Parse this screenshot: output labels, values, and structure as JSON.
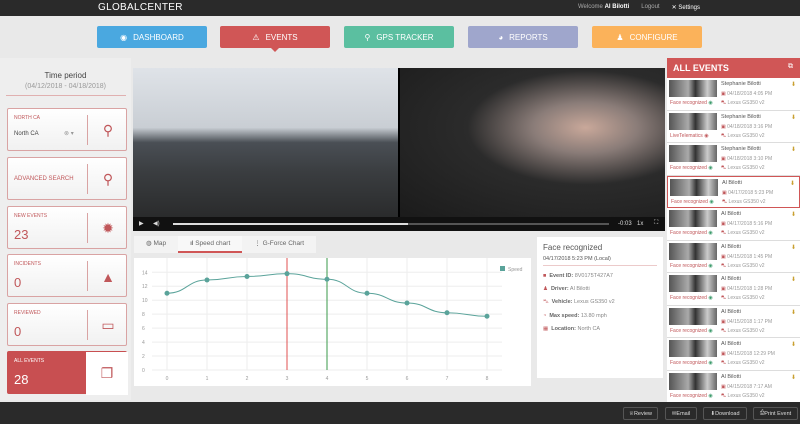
{
  "header": {
    "logo": "GLOBALCENTER",
    "welcome": "Welcome",
    "user": "Al Bilotti",
    "logout": "Logout",
    "settings": "Settings"
  },
  "nav": [
    {
      "label": "DASHBOARD",
      "color": "#4aa8e0",
      "icon": "dashboard-icon"
    },
    {
      "label": "EVENTS",
      "color": "#d05656",
      "icon": "warning-icon",
      "active": true
    },
    {
      "label": "GPS TRACKER",
      "color": "#5bbfa0",
      "icon": "map-pin-icon"
    },
    {
      "label": "REPORTS",
      "color": "#9fa6cc",
      "icon": "pie-chart-icon"
    },
    {
      "label": "CONFIGURE",
      "color": "#fbb25a",
      "icon": "user-icon"
    }
  ],
  "sidebar": {
    "time_period_label": "Time period",
    "time_period_range": "(04/12/2018 - 04/18/2018)",
    "region": {
      "label": "NORTH CA",
      "value": "North CA"
    },
    "advanced_search": "ADVANCED SEARCH",
    "new_events": {
      "label": "NEW EVENTS",
      "count": "23"
    },
    "incidents": {
      "label": "INCIDENTS",
      "count": "0"
    },
    "reviewed": {
      "label": "REVIEWED",
      "count": "0"
    },
    "all_events": {
      "label": "ALL EVENTS",
      "count": "28"
    }
  },
  "video": {
    "time_remaining": "-0:03",
    "speed": "1x",
    "progress": 0.54
  },
  "tabs": [
    "Map",
    "Speed chart",
    "G-Force Chart"
  ],
  "chart_data": {
    "type": "line",
    "categories": [
      "0",
      "1",
      "2",
      "3",
      "4",
      "5",
      "6",
      "7",
      "8"
    ],
    "series": [
      {
        "name": "Speed",
        "values": [
          11.0,
          12.9,
          13.4,
          13.8,
          13.0,
          11.0,
          9.6,
          8.2,
          7.7
        ],
        "color": "#5aa39a"
      }
    ],
    "yticks": [
      0,
      2,
      4,
      6,
      8,
      10,
      12,
      14
    ],
    "ylim": [
      0,
      14
    ],
    "legend": "top-right",
    "grid": true,
    "markers": [
      {
        "x": 3,
        "color": "#e05050"
      },
      {
        "x": 4,
        "color": "#3a9a4a"
      }
    ]
  },
  "info": {
    "title": "Face recognized",
    "datetime": "04/17/2018 5:23 PM (Local)",
    "event_id_label": "Event ID:",
    "event_id": "8V0175T427A7",
    "driver_label": "Driver:",
    "driver": "Al Bilotti",
    "vehicle_label": "Vehicle:",
    "vehicle": "Lexus GS350 v2",
    "max_speed_label": "Max speed:",
    "max_speed": "13.80 mph",
    "location_label": "Location:",
    "location": "North CA"
  },
  "events": {
    "title": "ALL EVENTS",
    "items": [
      {
        "name": "Stephanie Bilotti",
        "date": "04/18/2018 4:05 PM",
        "vehicle": "Lexus GS350 v2",
        "tag": "Face recognized"
      },
      {
        "name": "Stephanie Bilotti",
        "date": "04/18/2018 3:16 PM",
        "vehicle": "Lexus GS350 v2",
        "tag": "LiveTelematics"
      },
      {
        "name": "Stephanie Bilotti",
        "date": "04/18/2018 3:10 PM",
        "vehicle": "Lexus GS350 v2",
        "tag": "Face recognized"
      },
      {
        "name": "Al Bilotti",
        "date": "04/17/2018 5:23 PM",
        "vehicle": "Lexus GS350 v2",
        "tag": "Face recognized",
        "selected": true
      },
      {
        "name": "Al Bilotti",
        "date": "04/17/2018 5:16 PM",
        "vehicle": "Lexus GS350 v2",
        "tag": "Face recognized"
      },
      {
        "name": "Al Bilotti",
        "date": "04/15/2018 1:45 PM",
        "vehicle": "Lexus GS350 v2",
        "tag": "Face recognized"
      },
      {
        "name": "Al Bilotti",
        "date": "04/15/2018 1:28 PM",
        "vehicle": "Lexus GS350 v2",
        "tag": "Face recognized"
      },
      {
        "name": "Al Bilotti",
        "date": "04/15/2018 1:17 PM",
        "vehicle": "Lexus GS350 v2",
        "tag": "Face recognized"
      },
      {
        "name": "Al Bilotti",
        "date": "04/15/2018 12:29 PM",
        "vehicle": "Lexus GS350 v2",
        "tag": "Face recognized"
      },
      {
        "name": "Al Bilotti",
        "date": "04/15/2018 7:17 AM",
        "vehicle": "Lexus GS350 v2",
        "tag": "Face recognized"
      },
      {
        "name": "Al Bilotti",
        "date": "",
        "vehicle": "",
        "tag": ""
      }
    ]
  },
  "footer": {
    "review": "Review",
    "email": "Email",
    "download": "Download",
    "print": "Print Event"
  }
}
